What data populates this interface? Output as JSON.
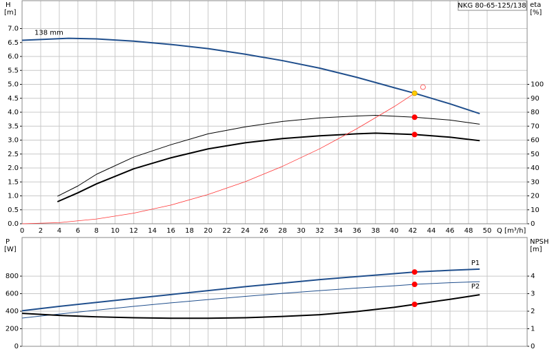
{
  "chart_data": [
    {
      "type": "line",
      "title": "NKG 80-65-125/138",
      "ylabel": "H",
      "yunit": "[m]",
      "y2label": "eta",
      "y2unit": "[%]",
      "xlabel": "Q [m³/h]",
      "xlim": [
        0,
        54.3
      ],
      "xticks": [
        0,
        2,
        4,
        6,
        8,
        10,
        12,
        14,
        16,
        18,
        20,
        22,
        24,
        26,
        28,
        30,
        32,
        34,
        36,
        38,
        40,
        42,
        44,
        46,
        48,
        50
      ],
      "ylim": [
        0,
        8
      ],
      "yticks": [
        {
          "value": 0,
          "label": "0.0"
        },
        0.5,
        {
          "value": 1,
          "label": "1.0"
        },
        1.5,
        {
          "value": 2,
          "label": "2.0"
        },
        2.5,
        {
          "value": 3,
          "label": "3.0"
        },
        3.5,
        {
          "value": 4,
          "label": "4.0"
        },
        4.5,
        {
          "value": 5,
          "label": "5.0"
        },
        5.5,
        {
          "value": 6,
          "label": "6.0"
        },
        6.5,
        {
          "value": 7,
          "label": "7.0"
        }
      ],
      "y2lim": [
        0,
        160
      ],
      "y2ticks": [
        0,
        10,
        20,
        30,
        40,
        50,
        60,
        70,
        80,
        90,
        100
      ],
      "grid": true,
      "series": [
        {
          "name": "138 mm",
          "name_pos": "start",
          "color": "#1f4e8c",
          "width": 2,
          "style": "line",
          "x": [
            0,
            5,
            8,
            12,
            16,
            20,
            24,
            28,
            32,
            36,
            40,
            42.2,
            46,
            49.2
          ],
          "values": [
            6.58,
            6.65,
            6.63,
            6.55,
            6.43,
            6.28,
            6.08,
            5.85,
            5.58,
            5.25,
            4.88,
            4.68,
            4.3,
            3.95
          ]
        },
        {
          "color": "#000000",
          "width": 1,
          "style": "line",
          "axis": "y2",
          "x": [
            3.8,
            6,
            8,
            12,
            16,
            20,
            24,
            28,
            32,
            36,
            38,
            42.2,
            46,
            49.2
          ],
          "values": [
            19.7,
            27.1,
            35.5,
            47.8,
            56.7,
            64.5,
            69.5,
            73.4,
            75.9,
            77.3,
            77.8,
            76.4,
            74.4,
            71.4
          ]
        },
        {
          "color": "#000000",
          "width": 2,
          "style": "line",
          "axis": "y2",
          "x": [
            3.8,
            6,
            8,
            12,
            16,
            20,
            24,
            28,
            32,
            36,
            38,
            42.2,
            46,
            49.2
          ],
          "values": [
            15.8,
            22.2,
            28.6,
            39.4,
            47.3,
            53.7,
            58.1,
            61.1,
            63.1,
            64.5,
            65.0,
            64.0,
            62.1,
            59.6
          ]
        },
        {
          "color": "#ff3333",
          "width": 0.8,
          "style": "line",
          "x": [
            0,
            4,
            8,
            12,
            16,
            20,
            24,
            28,
            32,
            36,
            40,
            42.2
          ],
          "values": [
            0,
            0.04,
            0.17,
            0.38,
            0.67,
            1.05,
            1.51,
            2.06,
            2.69,
            3.41,
            4.2,
            4.68
          ]
        },
        {
          "color": "#ffcc00",
          "style": "point",
          "x": [
            42.2
          ],
          "values": [
            4.68
          ]
        },
        {
          "color": "#ff0000",
          "style": "point",
          "axis": "y2",
          "x": [
            42.2,
            42.2
          ],
          "values": [
            76.4,
            64.0
          ]
        },
        {
          "color": "#ff6666",
          "style": "open-point",
          "x": [
            43.1
          ],
          "values": [
            4.9
          ]
        }
      ]
    },
    {
      "type": "line",
      "ylabel": "P",
      "yunit": "[W]",
      "y2label": "NPSH",
      "y2unit": "[m]",
      "xlim": [
        0,
        54.3
      ],
      "xticks": [
        0,
        2,
        4,
        6,
        8,
        10,
        12,
        14,
        16,
        18,
        20,
        22,
        24,
        26,
        28,
        30,
        32,
        34,
        36,
        38,
        40,
        42,
        44,
        46,
        48,
        50
      ],
      "xtick_labels": false,
      "ylim": [
        0,
        1240
      ],
      "yticks": [
        0,
        200,
        400,
        600,
        800
      ],
      "y2lim": [
        0,
        6.2
      ],
      "y2ticks": [
        0,
        1,
        2,
        3,
        4
      ],
      "grid": true,
      "series": [
        {
          "name": "P1",
          "name_pos": "end-above",
          "color": "#1f4e8c",
          "width": 2,
          "style": "line",
          "x": [
            0,
            4,
            8,
            12,
            16,
            20,
            24,
            28,
            32,
            36,
            40,
            42.2,
            46,
            49.2
          ],
          "values": [
            405,
            455,
            500,
            545,
            590,
            635,
            680,
            720,
            760,
            795,
            828,
            847,
            866,
            880
          ]
        },
        {
          "name": "P2",
          "name_pos": "end-below",
          "color": "#1f4e8c",
          "width": 1,
          "style": "line",
          "x": [
            0,
            4,
            8,
            12,
            16,
            20,
            24,
            28,
            32,
            36,
            40,
            42.2,
            46,
            49.2
          ],
          "values": [
            322,
            368,
            412,
            455,
            495,
            533,
            569,
            603,
            635,
            664,
            690,
            706,
            725,
            737
          ]
        },
        {
          "color": "#000000",
          "width": 2,
          "style": "line",
          "axis": "y2",
          "x": [
            0,
            4,
            8,
            12,
            16,
            20,
            24,
            28,
            32,
            36,
            40,
            42.2,
            46,
            49.2
          ],
          "values": [
            1.88,
            1.76,
            1.68,
            1.63,
            1.6,
            1.6,
            1.63,
            1.7,
            1.8,
            1.98,
            2.22,
            2.39,
            2.68,
            2.94
          ]
        },
        {
          "color": "#ff0000",
          "style": "point",
          "x": [
            42.2,
            42.2
          ],
          "values": [
            847,
            706
          ]
        },
        {
          "color": "#ff0000",
          "style": "point",
          "axis": "y2",
          "x": [
            42.2
          ],
          "values": [
            2.39
          ]
        }
      ]
    }
  ]
}
